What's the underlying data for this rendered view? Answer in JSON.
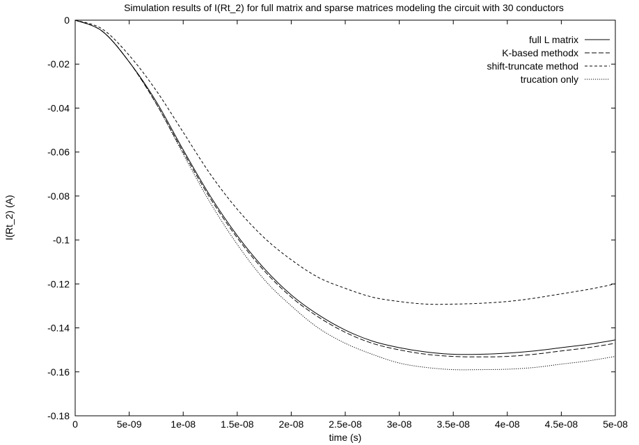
{
  "chart_data": {
    "type": "line",
    "title": "Simulation results of I(Rt_2) for full matrix and sparse matrices modeling the circuit with 30 conductors",
    "xlabel": "time (s)",
    "ylabel": "I(Rt_2) (A)",
    "xlim": [
      0,
      5e-08
    ],
    "ylim": [
      -0.18,
      0
    ],
    "x_ticks": [
      0,
      5e-09,
      1e-08,
      1.5e-08,
      2e-08,
      2.5e-08,
      3e-08,
      3.5e-08,
      4e-08,
      4.5e-08,
      5e-08
    ],
    "x_tick_labels": [
      "0",
      "5e-09",
      "1e-08",
      "1.5e-08",
      "2e-08",
      "2.5e-08",
      "3e-08",
      "3.5e-08",
      "4e-08",
      "4.5e-08",
      "5e-08"
    ],
    "y_ticks": [
      0,
      -0.02,
      -0.04,
      -0.06,
      -0.08,
      -0.1,
      -0.12,
      -0.14,
      -0.16,
      -0.18
    ],
    "y_tick_labels": [
      "0",
      "-0.02",
      "-0.04",
      "-0.06",
      "-0.08",
      "-0.1",
      "-0.12",
      "-0.14",
      "-0.16",
      "-0.18"
    ],
    "grid": false,
    "legend_position": "top-right",
    "x": [
      0,
      2.5e-09,
      5e-09,
      7.5e-09,
      1e-08,
      1.25e-08,
      1.5e-08,
      1.75e-08,
      2e-08,
      2.25e-08,
      2.5e-08,
      2.75e-08,
      3e-08,
      3.25e-08,
      3.5e-08,
      3.75e-08,
      4e-08,
      4.25e-08,
      4.5e-08,
      4.75e-08,
      5e-08
    ],
    "series": [
      {
        "name": "full L matrix",
        "dash": "solid",
        "values": [
          0,
          -0.005,
          -0.019,
          -0.037,
          -0.059,
          -0.08,
          -0.098,
          -0.113,
          -0.125,
          -0.134,
          -0.141,
          -0.146,
          -0.149,
          -0.151,
          -0.152,
          -0.152,
          -0.1515,
          -0.1505,
          -0.149,
          -0.1475,
          -0.1455
        ]
      },
      {
        "name": "K-based methodx",
        "dash": "dashed",
        "values": [
          0,
          -0.005,
          -0.019,
          -0.038,
          -0.06,
          -0.081,
          -0.099,
          -0.114,
          -0.126,
          -0.135,
          -0.142,
          -0.147,
          -0.15,
          -0.152,
          -0.153,
          -0.1532,
          -0.153,
          -0.152,
          -0.1505,
          -0.149,
          -0.147
        ]
      },
      {
        "name": "shift-truncate method",
        "dash": "short-dash",
        "values": [
          0,
          -0.004,
          -0.016,
          -0.032,
          -0.051,
          -0.07,
          -0.086,
          -0.099,
          -0.109,
          -0.117,
          -0.122,
          -0.126,
          -0.128,
          -0.1292,
          -0.1292,
          -0.1288,
          -0.128,
          -0.1265,
          -0.1245,
          -0.1225,
          -0.12
        ]
      },
      {
        "name": "trucation only",
        "dash": "dotted",
        "values": [
          0,
          -0.005,
          -0.019,
          -0.038,
          -0.061,
          -0.083,
          -0.102,
          -0.118,
          -0.13,
          -0.14,
          -0.147,
          -0.152,
          -0.156,
          -0.158,
          -0.159,
          -0.159,
          -0.1588,
          -0.158,
          -0.1565,
          -0.155,
          -0.153
        ]
      }
    ]
  }
}
